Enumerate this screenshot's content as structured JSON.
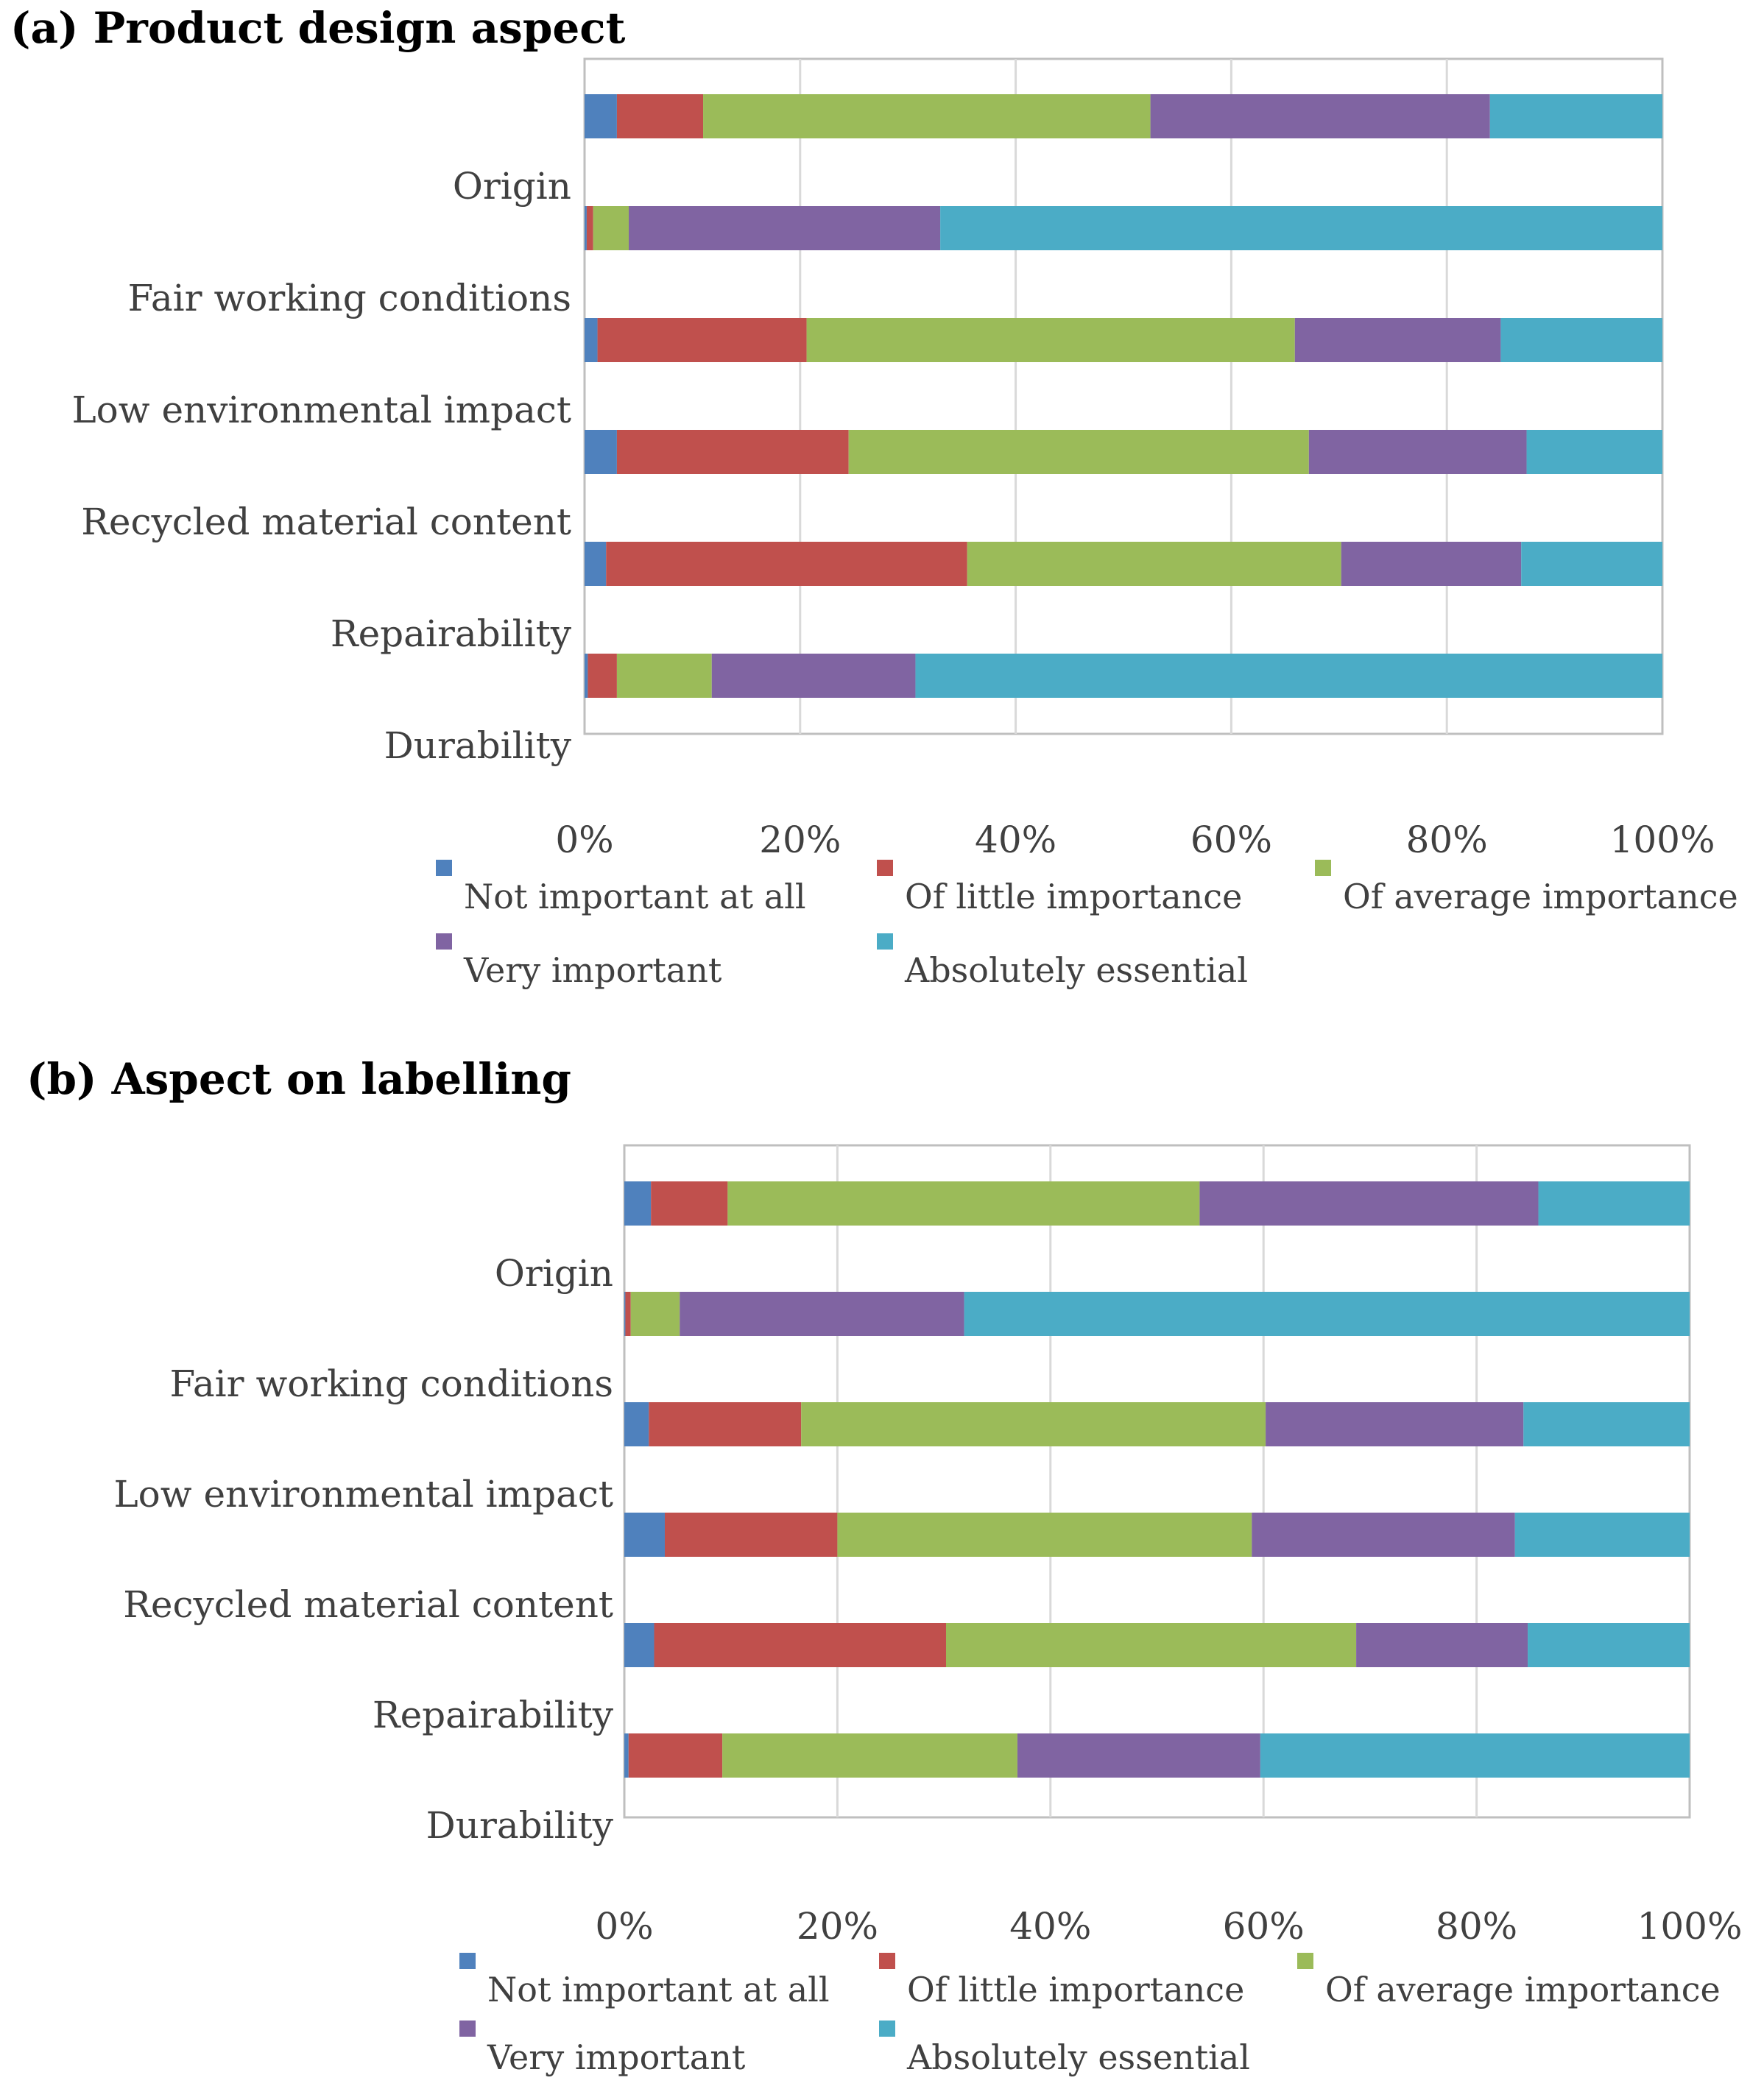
{
  "chart_data": [
    {
      "type": "bar",
      "orientation": "horizontal",
      "stacked": "percent",
      "title": "(a) Product design aspect",
      "categories": [
        "Origin",
        "Fair working conditions",
        "Low environmental impact",
        "Recycled material content",
        "Repairability",
        "Durability"
      ],
      "series": [
        {
          "name": "Not important at all",
          "values": [
            3,
            0.2,
            1.2,
            3,
            2,
            0.3
          ]
        },
        {
          "name": "Of little importance",
          "values": [
            8,
            0.6,
            19.4,
            21.5,
            33.5,
            2.7
          ]
        },
        {
          "name": "Of average importance",
          "values": [
            41.5,
            3.3,
            45.3,
            42.7,
            34.7,
            8.8
          ]
        },
        {
          "name": "Very important",
          "values": [
            31.5,
            28.9,
            19.1,
            20.2,
            16.7,
            18.9
          ]
        },
        {
          "name": "Absolutely essential",
          "values": [
            16,
            67,
            15,
            12.6,
            13.1,
            69.3
          ]
        }
      ],
      "xlim": [
        0,
        100
      ],
      "xticks": [
        "0%",
        "20%",
        "40%",
        "60%",
        "80%",
        "100%"
      ],
      "grid": true,
      "legend": "bottom"
    },
    {
      "type": "bar",
      "orientation": "horizontal",
      "stacked": "percent",
      "title": "(b) Aspect on labelling",
      "categories": [
        "Origin",
        "Fair working conditions",
        "Low environmental impact",
        "Recycled material content",
        "Repairability",
        "Durability"
      ],
      "series": [
        {
          "name": "Not important at all",
          "values": [
            2.5,
            0.1,
            2.3,
            3.8,
            2.8,
            0.4
          ]
        },
        {
          "name": "Of little importance",
          "values": [
            7.2,
            0.5,
            14.3,
            16.2,
            27.4,
            8.8
          ]
        },
        {
          "name": "Of average importance",
          "values": [
            44.3,
            4.6,
            43.6,
            38.9,
            38.5,
            27.7
          ]
        },
        {
          "name": "Very important",
          "values": [
            31.8,
            26.7,
            24.2,
            24.7,
            16.1,
            22.8
          ]
        },
        {
          "name": "Absolutely essential",
          "values": [
            14.2,
            68.1,
            15.6,
            16.4,
            15.2,
            40.3
          ]
        }
      ],
      "xlim": [
        0,
        100
      ],
      "xticks": [
        "0%",
        "20%",
        "40%",
        "60%",
        "80%",
        "100%"
      ],
      "grid": true,
      "legend": "bottom"
    }
  ],
  "colors": {
    "Not important at all": "#4F81BD",
    "Of little importance": "#C0504D",
    "Of average importance": "#9BBB59",
    "Very important": "#8064A2",
    "Absolutely essential": "#4BACC6",
    "grid": "#D9D9D9",
    "axis": "#BFBFBF"
  }
}
